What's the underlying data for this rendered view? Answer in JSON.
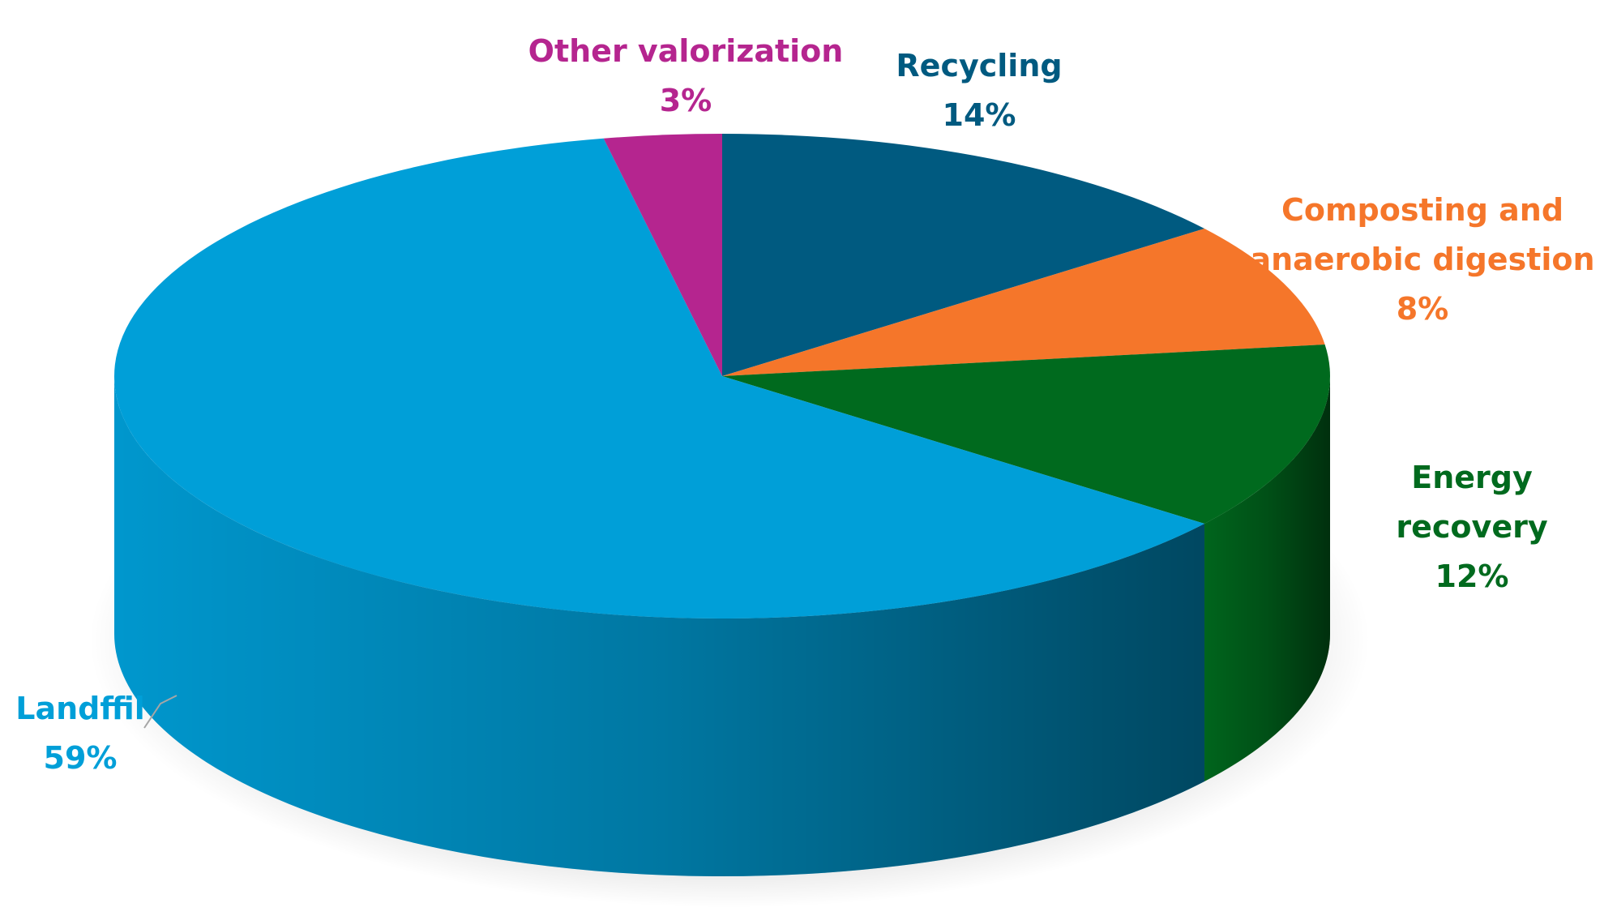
{
  "chart_data": {
    "type": "pie",
    "categories": [
      "Recycling",
      "Composting and anaerobic digestion",
      "Energy recovery",
      "Landffil",
      "Other valorization"
    ],
    "values": [
      14,
      8,
      12,
      59,
      3
    ],
    "value_labels": [
      "14%",
      "8%",
      "12%",
      "59%",
      "3%"
    ],
    "colors": [
      "#005a80",
      "#f5762a",
      "#006a1e",
      "#009fd8",
      "#b5258f"
    ]
  }
}
